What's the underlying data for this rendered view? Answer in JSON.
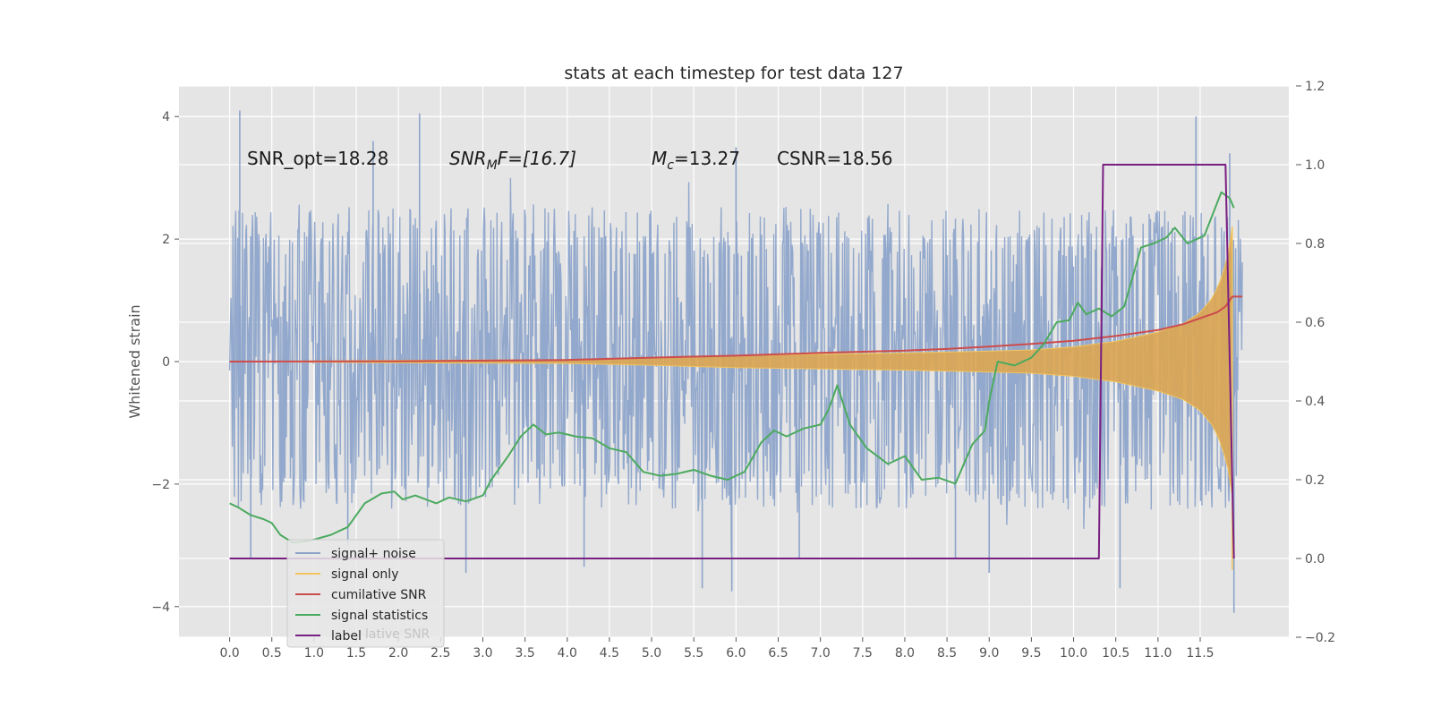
{
  "chart_data": {
    "type": "line",
    "title": "stats at each timestep for test data 127",
    "ylabel": "Whitened strain",
    "y2label": "",
    "xlim": [
      -0.6,
      12.55
    ],
    "ylim": [
      -4.5,
      4.5
    ],
    "y2lim": [
      -0.2,
      1.2
    ],
    "xticks": [
      "0.0",
      "0.5",
      "1.0",
      "1.5",
      "2.0",
      "2.5",
      "3.0",
      "3.5",
      "4.0",
      "4.5",
      "5.0",
      "5.5",
      "6.0",
      "6.5",
      "7.0",
      "7.5",
      "8.0",
      "8.5",
      "9.0",
      "9.5",
      "10.0",
      "10.5",
      "11.0",
      "11.5"
    ],
    "yticks": [
      "4",
      "2",
      "0",
      "−2",
      "−4"
    ],
    "y2ticks": [
      "1.2",
      "1.0",
      "0.8",
      "0.6",
      "0.4",
      "0.2",
      "0.0",
      "−0.2"
    ],
    "grid": true,
    "annotations": {
      "snr_opt": "SNR_opt=18.28",
      "snr_mf_base": "SNR",
      "snr_mf_sub": "M",
      "snr_mf_rest": "F=[16.7]",
      "mc_base": "M",
      "mc_sub": "c",
      "mc_rest": "=13.27",
      "csnr": "CSNR=18.56"
    },
    "legend": {
      "position": "lower-left",
      "items": [
        {
          "label": "signal+ noise",
          "color": "#8da4ca"
        },
        {
          "label": "signal only",
          "color": "#f2c45f"
        },
        {
          "label": "cumilative SNR",
          "color": "#cc4c4c"
        },
        {
          "label": "signal statistics",
          "color": "#4caa5f"
        },
        {
          "label": "label",
          "color": "#7a1f82"
        }
      ],
      "overlap_text": "lative SNR"
    },
    "series": [
      {
        "name": "signal+ noise",
        "axis": "left",
        "color": "#8da4ca",
        "x_range": [
          0.0,
          12.0
        ],
        "typical_amplitude": [
          -2.0,
          2.3
        ],
        "spikes": [
          {
            "x": 0.12,
            "y": 4.1
          },
          {
            "x": 2.25,
            "y": 4.05
          },
          {
            "x": 11.45,
            "y": 4.0
          },
          {
            "x": 1.7,
            "y": 3.6
          },
          {
            "x": 6.0,
            "y": 3.5
          },
          {
            "x": 11.85,
            "y": 3.4
          },
          {
            "x": 5.6,
            "y": -3.7
          },
          {
            "x": 5.95,
            "y": -3.75
          },
          {
            "x": 10.55,
            "y": -3.7
          },
          {
            "x": 11.9,
            "y": -4.1
          },
          {
            "x": 9.0,
            "y": -3.45
          },
          {
            "x": 2.8,
            "y": -3.45
          },
          {
            "x": 4.2,
            "y": -3.35
          },
          {
            "x": 0.25,
            "y": -3.2
          },
          {
            "x": 1.4,
            "y": -3.0
          },
          {
            "x": 6.75,
            "y": -3.2
          },
          {
            "x": 8.6,
            "y": -3.2
          }
        ]
      },
      {
        "name": "signal only",
        "axis": "left",
        "color": "#f2c45f",
        "x": [
          0,
          2,
          4,
          5,
          6,
          7,
          8,
          9,
          9.5,
          10,
          10.5,
          11,
          11.3,
          11.5,
          11.65,
          11.75,
          11.83,
          11.88
        ],
        "envelope": [
          0.0,
          0.02,
          0.03,
          0.06,
          0.1,
          0.12,
          0.14,
          0.17,
          0.19,
          0.24,
          0.33,
          0.48,
          0.62,
          0.8,
          1.05,
          1.35,
          1.75,
          2.2
        ]
      },
      {
        "name": "cumilative SNR",
        "axis": "right",
        "color": "#cc4c4c",
        "x": [
          0,
          2,
          4,
          5,
          6,
          7,
          8,
          8.5,
          9,
          9.5,
          10,
          10.5,
          11,
          11.3,
          11.5,
          11.7,
          11.8,
          11.88,
          11.9,
          12.0
        ],
        "values": [
          0.5,
          0.501,
          0.504,
          0.51,
          0.515,
          0.522,
          0.528,
          0.532,
          0.538,
          0.545,
          0.553,
          0.565,
          0.58,
          0.595,
          0.61,
          0.625,
          0.64,
          0.665,
          0.665,
          0.665
        ]
      },
      {
        "name": "signal statistics",
        "axis": "right",
        "color": "#4caa5f",
        "x": [
          0,
          0.1,
          0.25,
          0.4,
          0.5,
          0.6,
          0.75,
          0.95,
          1.2,
          1.4,
          1.6,
          1.8,
          1.95,
          2.05,
          2.2,
          2.45,
          2.6,
          2.8,
          3.0,
          3.1,
          3.3,
          3.45,
          3.6,
          3.75,
          3.9,
          4.1,
          4.3,
          4.5,
          4.7,
          4.9,
          5.1,
          5.3,
          5.5,
          5.7,
          5.9,
          6.1,
          6.3,
          6.45,
          6.6,
          6.8,
          7.0,
          7.1,
          7.2,
          7.35,
          7.55,
          7.8,
          8.0,
          8.2,
          8.4,
          8.6,
          8.8,
          8.95,
          9.0,
          9.1,
          9.3,
          9.5,
          9.65,
          9.8,
          9.95,
          10.05,
          10.15,
          10.3,
          10.45,
          10.6,
          10.8,
          10.95,
          11.1,
          11.2,
          11.35,
          11.55,
          11.75,
          11.85,
          11.9
        ],
        "values": [
          0.14,
          0.13,
          0.11,
          0.1,
          0.09,
          0.06,
          0.04,
          0.045,
          0.06,
          0.08,
          0.14,
          0.165,
          0.17,
          0.15,
          0.16,
          0.14,
          0.155,
          0.145,
          0.16,
          0.2,
          0.26,
          0.31,
          0.34,
          0.315,
          0.32,
          0.31,
          0.305,
          0.28,
          0.27,
          0.22,
          0.21,
          0.215,
          0.225,
          0.21,
          0.2,
          0.22,
          0.295,
          0.325,
          0.31,
          0.33,
          0.34,
          0.38,
          0.44,
          0.34,
          0.28,
          0.24,
          0.26,
          0.2,
          0.205,
          0.19,
          0.29,
          0.325,
          0.4,
          0.5,
          0.49,
          0.51,
          0.545,
          0.6,
          0.605,
          0.65,
          0.62,
          0.635,
          0.615,
          0.64,
          0.79,
          0.8,
          0.815,
          0.84,
          0.8,
          0.82,
          0.93,
          0.915,
          0.89
        ]
      },
      {
        "name": "label",
        "axis": "right",
        "color": "#7a1f82",
        "x": [
          0,
          10.3,
          10.35,
          11.8,
          11.9
        ],
        "values": [
          0.0,
          0.0,
          1.0,
          1.0,
          0.0
        ]
      }
    ]
  }
}
